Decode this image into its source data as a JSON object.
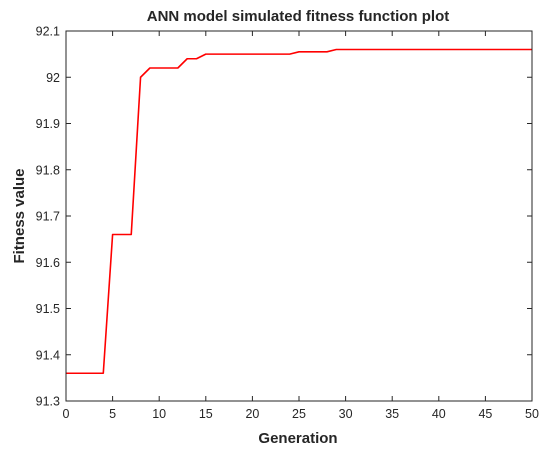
{
  "chart_data": {
    "type": "line",
    "title": "ANN model simulated fitness function plot",
    "xlabel": "Generation",
    "ylabel": "Fitness value",
    "xlim": [
      0,
      50
    ],
    "ylim": [
      91.3,
      92.1
    ],
    "grid": false,
    "xticks": [
      0,
      5,
      10,
      15,
      20,
      25,
      30,
      35,
      40,
      45,
      50
    ],
    "xtick_labels": [
      "0",
      "5",
      "10",
      "15",
      "20",
      "25",
      "30",
      "35",
      "40",
      "45",
      "50"
    ],
    "yticks": [
      91.3,
      91.4,
      91.5,
      91.6,
      91.7,
      91.8,
      91.9,
      92.0,
      92.1
    ],
    "ytick_labels": [
      "91.3",
      "91.4",
      "91.5",
      "91.6",
      "91.7",
      "91.8",
      "91.9",
      "92",
      "92.1"
    ],
    "series": [
      {
        "color": "#ff0000",
        "x": [
          0,
          4,
          5,
          7,
          8,
          9,
          12,
          13,
          14,
          15,
          24,
          25,
          28,
          29,
          50
        ],
        "y": [
          91.36,
          91.36,
          91.66,
          91.66,
          92.0,
          92.02,
          92.02,
          92.04,
          92.04,
          92.05,
          92.05,
          92.055,
          92.055,
          92.06,
          92.06
        ]
      }
    ]
  }
}
